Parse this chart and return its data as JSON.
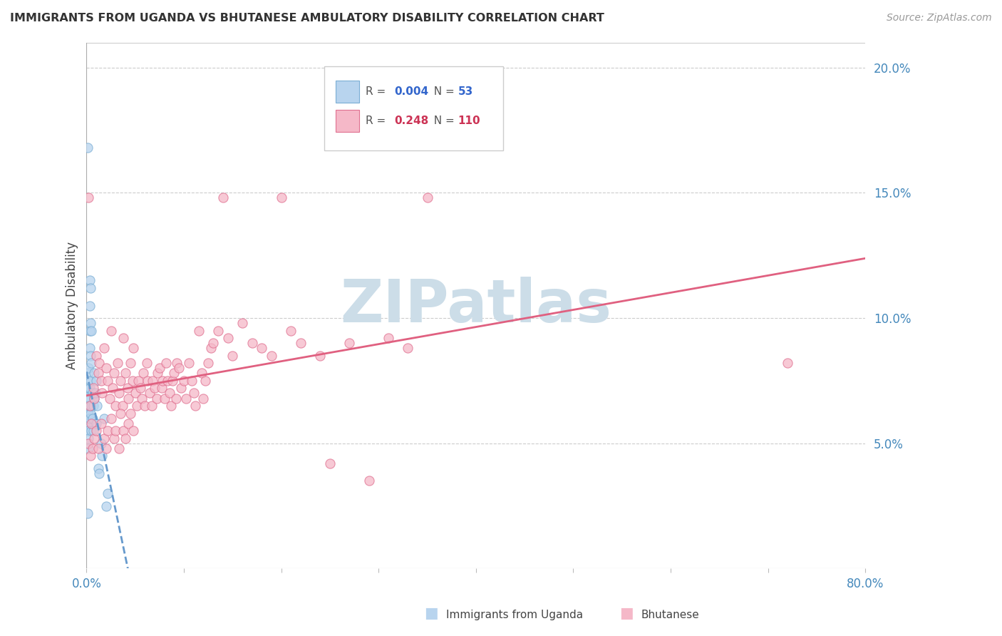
{
  "title": "IMMIGRANTS FROM UGANDA VS BHUTANESE AMBULATORY DISABILITY CORRELATION CHART",
  "source": "Source: ZipAtlas.com",
  "ylabel": "Ambulatory Disability",
  "xlim": [
    0.0,
    0.8
  ],
  "ylim": [
    0.0,
    0.21
  ],
  "xtick_positions": [
    0.0,
    0.1,
    0.2,
    0.3,
    0.4,
    0.5,
    0.6,
    0.7,
    0.8
  ],
  "xtick_labels": [
    "0.0%",
    "",
    "",
    "",
    "",
    "",
    "",
    "",
    "80.0%"
  ],
  "ytick_positions": [
    0.05,
    0.1,
    0.15,
    0.2
  ],
  "ytick_labels": [
    "5.0%",
    "10.0%",
    "15.0%",
    "20.0%"
  ],
  "legend_uganda_R": "0.004",
  "legend_uganda_N": "53",
  "legend_bhutan_R": "0.248",
  "legend_bhutan_N": "110",
  "color_uganda_fill": "#b8d4ee",
  "color_uganda_edge": "#7aaed4",
  "color_bhutan_fill": "#f5b8c8",
  "color_bhutan_edge": "#e07090",
  "color_uganda_line": "#6699cc",
  "color_bhutan_line": "#e06080",
  "watermark_text": "ZIPatlas",
  "watermark_color": "#ccdde8"
}
